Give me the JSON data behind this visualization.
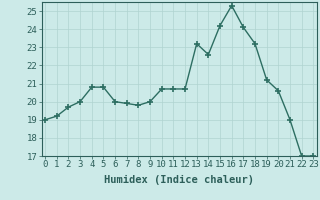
{
  "x": [
    0,
    1,
    2,
    3,
    4,
    5,
    6,
    7,
    8,
    9,
    10,
    11,
    12,
    13,
    14,
    15,
    16,
    17,
    18,
    19,
    20,
    21,
    22,
    23
  ],
  "y": [
    19.0,
    19.2,
    19.7,
    20.0,
    20.8,
    20.8,
    20.0,
    19.9,
    19.8,
    20.0,
    20.7,
    20.7,
    20.7,
    23.2,
    22.6,
    24.2,
    25.3,
    24.1,
    23.2,
    21.2,
    20.6,
    19.0,
    17.0,
    17.0
  ],
  "line_color": "#2d6e62",
  "marker": "+",
  "marker_size": 5,
  "marker_lw": 1.2,
  "bg_color": "#cceae8",
  "grid_color": "#b0d4d0",
  "xlabel": "Humidex (Indice chaleur)",
  "xlim": [
    0,
    23
  ],
  "ylim": [
    17,
    25.5
  ],
  "yticks": [
    17,
    18,
    19,
    20,
    21,
    22,
    23,
    24,
    25
  ],
  "xtick_labels": [
    "0",
    "1",
    "2",
    "3",
    "4",
    "5",
    "6",
    "7",
    "8",
    "9",
    "10",
    "11",
    "12",
    "13",
    "14",
    "15",
    "16",
    "17",
    "18",
    "19",
    "20",
    "21",
    "22",
    "23"
  ],
  "xlabel_fontsize": 7.5,
  "tick_fontsize": 6.5,
  "tick_color": "#2d5f5a",
  "axes_color": "#2d5f5a",
  "line_width": 1.0
}
